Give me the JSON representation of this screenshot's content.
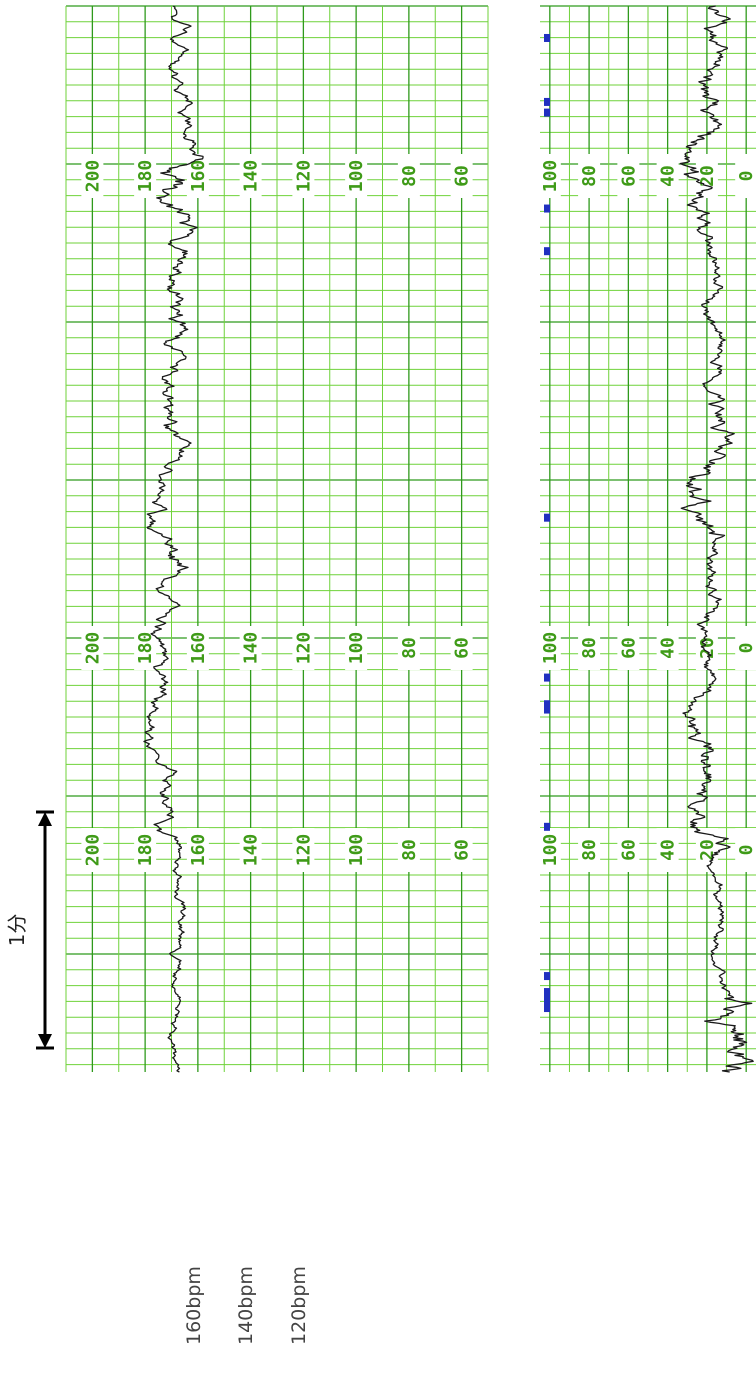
{
  "chart_data": {
    "type": "line",
    "orientation": "time runs bottom-to-top, values plotted horizontally (page rotated 90°)",
    "fhr": {
      "ticks": [
        200,
        180,
        160,
        140,
        120,
        100,
        80,
        60
      ],
      "ylim": [
        50,
        210
      ],
      "label_rows": 3,
      "baseline_approx": 165,
      "segments": [
        {
          "from": 0,
          "to": 0.12,
          "level": 168,
          "variability": 2
        },
        {
          "from": 0.12,
          "to": 0.21,
          "level": 166,
          "variability": 2
        },
        {
          "from": 0.21,
          "to": 0.38,
          "level": 174,
          "variability": 3
        },
        {
          "from": 0.38,
          "to": 0.46,
          "level": 172,
          "variability": 3
        },
        {
          "from": 0.46,
          "to": 0.58,
          "level": 172,
          "variability": 4
        },
        {
          "from": 0.58,
          "to": 0.79,
          "level": 168,
          "variability": 4
        },
        {
          "from": 0.79,
          "to": 0.86,
          "level": 164,
          "variability": 6
        },
        {
          "from": 0.86,
          "to": 1.0,
          "level": 168,
          "variability": 3
        }
      ]
    },
    "uc": {
      "ticks": [
        100,
        80,
        60,
        40,
        20,
        0
      ],
      "ylim": [
        -5,
        105
      ],
      "label_rows": 3,
      "segments": [
        {
          "from": 0,
          "to": 0.07,
          "level": 10,
          "variability": 10
        },
        {
          "from": 0.07,
          "to": 0.2,
          "level": 14,
          "variability": 3
        },
        {
          "from": 0.2,
          "to": 0.34,
          "level": 22,
          "variability": 7
        },
        {
          "from": 0.34,
          "to": 0.5,
          "level": 18,
          "variability": 4
        },
        {
          "from": 0.5,
          "to": 0.63,
          "level": 20,
          "variability": 7
        },
        {
          "from": 0.63,
          "to": 0.78,
          "level": 16,
          "variability": 4
        },
        {
          "from": 0.78,
          "to": 0.88,
          "level": 20,
          "variability": 7
        },
        {
          "from": 0.88,
          "to": 1.0,
          "level": 14,
          "variability": 6
        }
      ],
      "event_marks": [
        0.06,
        0.065,
        0.07,
        0.075,
        0.09,
        0.23,
        0.34,
        0.345,
        0.37,
        0.52,
        0.77,
        0.81,
        0.9,
        0.91,
        0.97
      ]
    },
    "reference_labels": [
      "160bpm",
      "140bpm",
      "120bpm"
    ],
    "scale": {
      "label": "1分"
    }
  },
  "colors": {
    "grid_minor": "#6fd23a",
    "grid_major": "#2f9a1c",
    "tick_label": "#3f9b18",
    "trace": "#1a1a1a",
    "fm_marks": "#2030c0"
  }
}
